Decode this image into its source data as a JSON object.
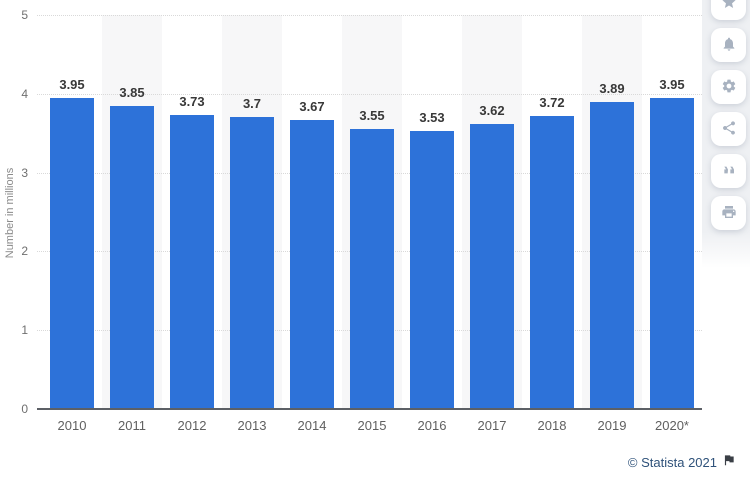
{
  "chart_data": {
    "type": "bar",
    "title": "",
    "categories": [
      "2010",
      "2011",
      "2012",
      "2013",
      "2014",
      "2015",
      "2016",
      "2017",
      "2018",
      "2019",
      "2020*"
    ],
    "values": [
      3.95,
      3.85,
      3.73,
      3.7,
      3.67,
      3.55,
      3.53,
      3.62,
      3.72,
      3.89,
      3.95
    ],
    "value_labels": [
      "3.95",
      "3.85",
      "3.73",
      "3.7",
      "3.67",
      "3.55",
      "3.53",
      "3.62",
      "3.72",
      "3.89",
      "3.95"
    ],
    "xlabel": "",
    "ylabel": "Number in millions",
    "ylim": [
      0,
      5
    ],
    "yticks": [
      0,
      1,
      2,
      3,
      4,
      5
    ],
    "grid": "horizontal-dotted",
    "legend": "none",
    "stripe_pattern": "alternating light-gray column bands behind odd-indexed categories"
  },
  "toolbar": {
    "buttons": [
      {
        "name": "favorite",
        "icon": "star-icon"
      },
      {
        "name": "alerts",
        "icon": "bell-icon"
      },
      {
        "name": "settings",
        "icon": "gear-icon"
      },
      {
        "name": "share",
        "icon": "share-icon"
      },
      {
        "name": "cite",
        "icon": "quote-icon"
      },
      {
        "name": "print",
        "icon": "printer-icon"
      }
    ]
  },
  "footer": {
    "copyright": "© Statista 2021",
    "flag_icon": "flag-icon"
  },
  "colors": {
    "bar": "#2d72d9",
    "stripe": "#f7f7f8",
    "gridline": "#d9d9d9",
    "axis_line": "#5c6066",
    "value_label": "#383838",
    "tick_label": "#6f6f6f",
    "x_label": "#606060",
    "y_axis_title": "#8a8a8a",
    "toolbar_bg": "#eef0f3",
    "toolbar_icon": "#a8b2c0",
    "copyright_text": "#2f527a"
  }
}
